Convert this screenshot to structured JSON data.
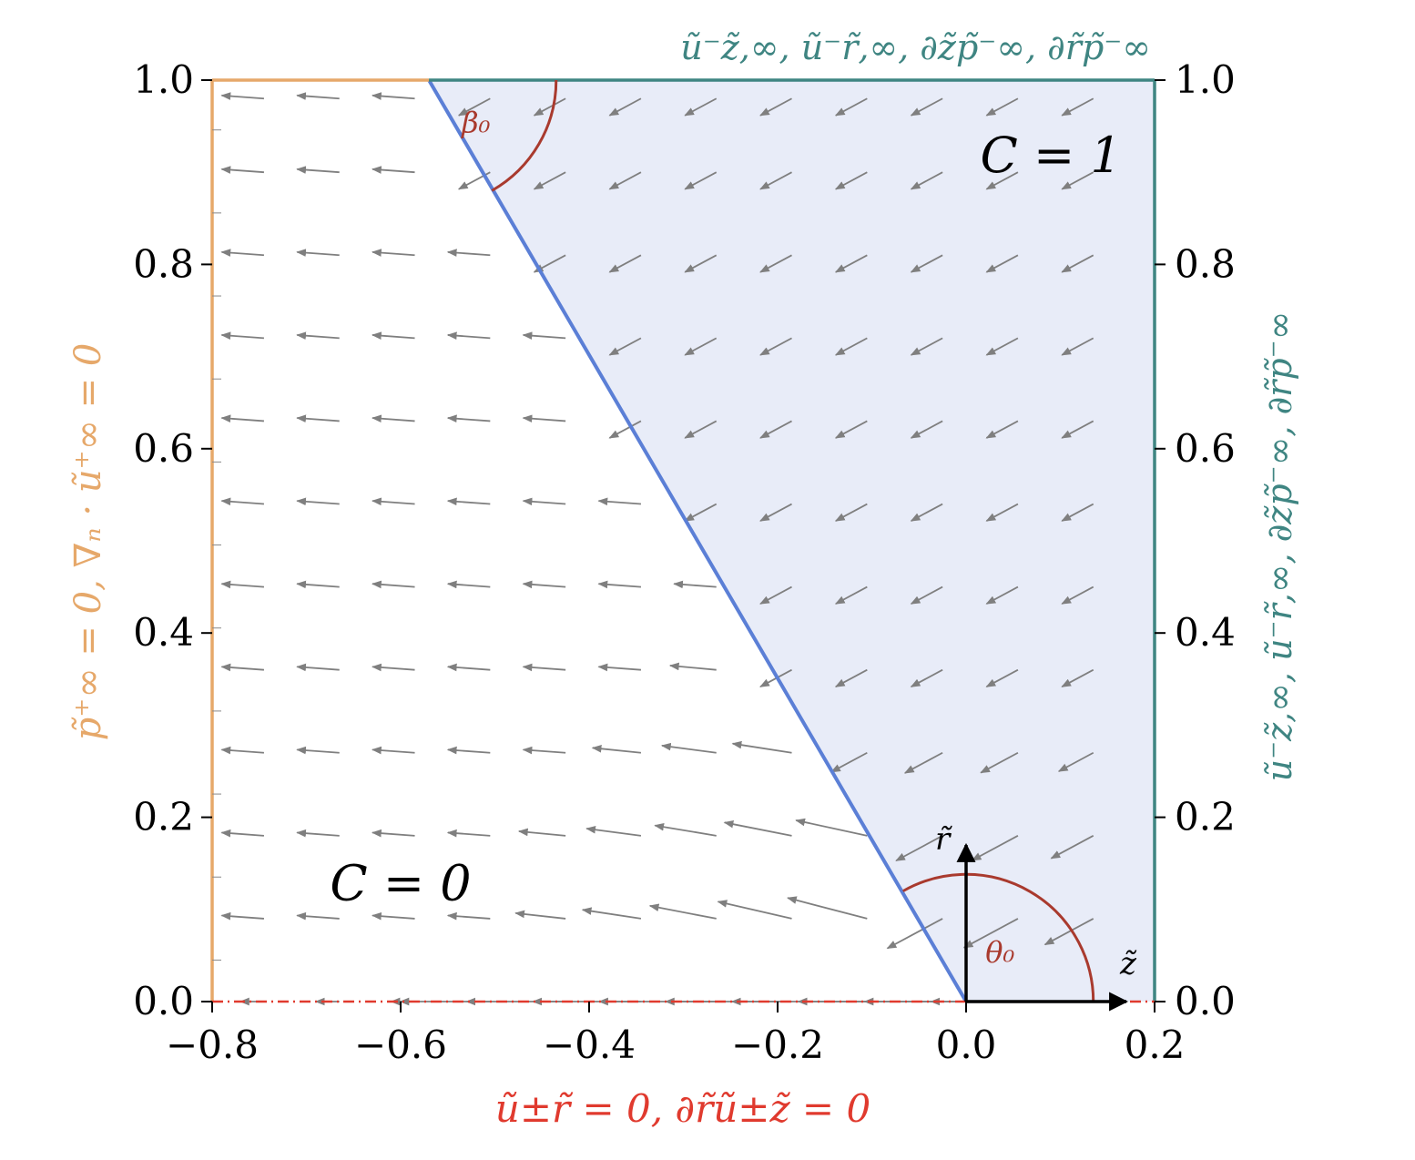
{
  "chart_data": {
    "type": "vector-field",
    "xlim": [
      -0.8,
      0.2
    ],
    "ylim": [
      0.0,
      1.0
    ],
    "x_ticks": [
      -0.8,
      -0.6,
      -0.4,
      -0.2,
      0.0,
      0.2
    ],
    "x_tick_labels": [
      "−0.8",
      "−0.6",
      "−0.4",
      "−0.2",
      "0.0",
      "0.2"
    ],
    "y_ticks": [
      0.0,
      0.2,
      0.4,
      0.6,
      0.8,
      1.0
    ],
    "y_tick_labels": [
      "0.0",
      "0.2",
      "0.4",
      "0.6",
      "0.8",
      "1.0"
    ],
    "interface": {
      "from": [
        0.0,
        0.0
      ],
      "to": [
        -0.57,
        1.0
      ]
    },
    "regions": [
      {
        "label": "C = 0",
        "at": [
          -0.6,
          0.13
        ]
      },
      {
        "label": "C = 1",
        "at": [
          0.09,
          0.92
        ]
      }
    ],
    "angles": [
      {
        "label": "β₀",
        "center": [
          -0.57,
          1.0
        ],
        "radius": 0.135,
        "from_deg": 0,
        "to_deg": -60.3
      },
      {
        "label": "θ₀",
        "center": [
          0.0,
          0.0
        ],
        "radius": 0.135,
        "from_deg": 0,
        "to_deg": 119.7
      }
    ],
    "local_axes": {
      "origin": [
        0.0,
        0.0
      ],
      "z_label": "z̃",
      "r_label": "r̃",
      "z_tip": [
        0.17,
        0.0
      ],
      "r_tip": [
        0.0,
        0.17
      ]
    },
    "vector_field": {
      "x": [
        -0.745,
        -0.665,
        -0.585,
        -0.505,
        -0.425,
        -0.345,
        -0.265,
        -0.185,
        -0.105,
        -0.025,
        0.055,
        0.135
      ],
      "y": [
        0.0,
        0.09,
        0.18,
        0.27,
        0.36,
        0.45,
        0.54,
        0.63,
        0.72,
        0.81,
        0.9,
        0.98
      ],
      "scale": 1.0
    },
    "boundaries": {
      "left": {
        "color": "#E6A86A",
        "text": "p̃⁺∞ = 0,   ∇ₙ · ũ⁺∞ = 0"
      },
      "right": {
        "color": "#3F8582",
        "text": "ũ⁻z̃,∞,   ũ⁻r̃,∞,   ∂z̃p̃⁻∞,   ∂r̃p̃⁻∞"
      },
      "top_left": {
        "color": "#E6A86A"
      },
      "top_right": {
        "color": "#3F8582",
        "text": "ũ⁻z̃,∞,   ũ⁻r̃,∞,   ∂z̃p̃⁻∞,   ∂r̃p̃⁻∞"
      },
      "bottom": {
        "color": "#E03A2E",
        "text": "ũ±r̃ = 0,   ∂r̃ũ±z̃ = 0"
      }
    },
    "colors": {
      "interface": "#5B7FD6",
      "fill_c1": "#E8ECF8",
      "arrows": "#7F7F7F",
      "angles": "#A93A2E",
      "axis_arrows": "#000000"
    }
  }
}
